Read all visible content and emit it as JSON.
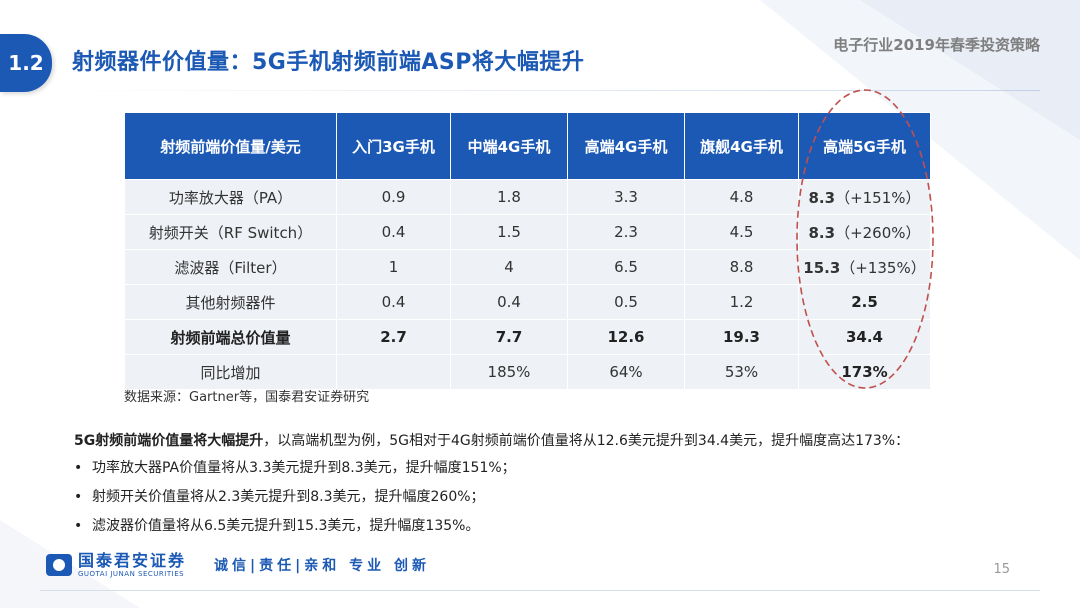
{
  "header": {
    "section_number": "1.2",
    "title": "射频器件价值量：5G手机射频前端ASP将大幅提升",
    "report_title": "电子行业2019年春季投资策略"
  },
  "table": {
    "columns": [
      "射频前端价值量/美元",
      "入门3G手机",
      "中端4G手机",
      "高端4G手机",
      "旗舰4G手机",
      "高端5G手机"
    ],
    "rows": [
      {
        "label": "功率放大器（PA）",
        "values": [
          "0.9",
          "1.8",
          "3.3",
          "4.8"
        ],
        "g5_value": "8.3",
        "g5_note": "（+151%）",
        "bold": false
      },
      {
        "label": "射频开关（RF Switch）",
        "values": [
          "0.4",
          "1.5",
          "2.3",
          "4.5"
        ],
        "g5_value": "8.3",
        "g5_note": "（+260%）",
        "bold": false
      },
      {
        "label": "滤波器（Filter）",
        "values": [
          "1",
          "4",
          "6.5",
          "8.8"
        ],
        "g5_value": "15.3",
        "g5_note": "（+135%）",
        "bold": false
      },
      {
        "label": "其他射频器件",
        "values": [
          "0.4",
          "0.4",
          "0.5",
          "1.2"
        ],
        "g5_value": "2.5",
        "g5_note": "",
        "bold": false
      },
      {
        "label": "射频前端总价值量",
        "values": [
          "2.7",
          "7.7",
          "12.6",
          "19.3"
        ],
        "g5_value": "34.4",
        "g5_note": "",
        "bold": true
      },
      {
        "label": "同比增加",
        "values": [
          "",
          "185%",
          "64%",
          "53%"
        ],
        "g5_value": "173%",
        "g5_note": "",
        "bold": false
      }
    ]
  },
  "source": "数据来源：Gartner等，国泰君安证券研究",
  "summary": {
    "bold": "5G射频前端价值量将大幅提升",
    "rest": "，以高端机型为例，5G相对于4G射频前端价值量将从12.6美元提升到34.4美元，提升幅度高达173%："
  },
  "bullets": [
    "功率放大器PA价值量将从3.3美元提升到8.3美元，提升幅度151%；",
    "射频开关价值量将从2.3美元提升到8.3美元，提升幅度260%；",
    "滤波器价值量将从6.5美元提升到15.3美元，提升幅度135%。"
  ],
  "footer": {
    "logo_cn": "国泰君安证券",
    "logo_en": "GUOTAI JUNAN SECURITIES",
    "slogan": "诚信|责任|亲和 专业 创新",
    "page_number": "15"
  },
  "colors": {
    "brand_blue": "#1b59b5",
    "cell_bg": "#eef1f6",
    "highlight_red": "#c0504d"
  }
}
